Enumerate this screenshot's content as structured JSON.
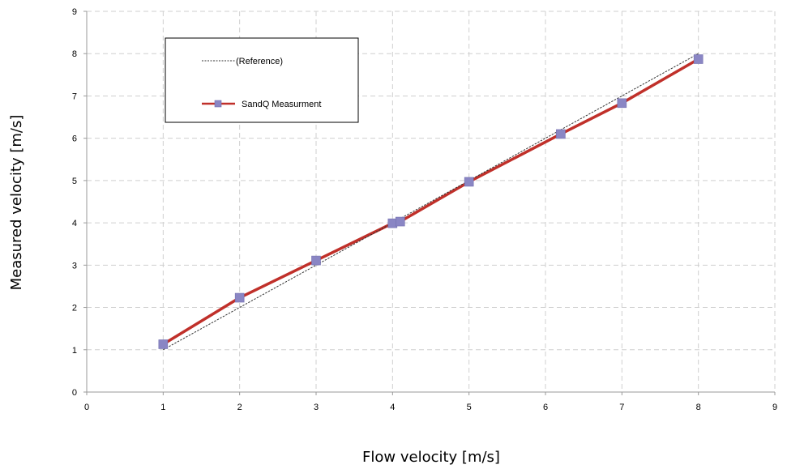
{
  "chart_data": {
    "type": "line",
    "title": "",
    "xlabel": "Flow velocity [m/s]",
    "ylabel": "Measured velocity [m/s]",
    "xlim": [
      0,
      9
    ],
    "ylim": [
      0,
      9
    ],
    "xticks": [
      "0",
      "1",
      "2",
      "3",
      "4",
      "5",
      "6",
      "7",
      "8",
      "9"
    ],
    "yticks": [
      "0",
      "1",
      "2",
      "3",
      "4",
      "5",
      "6",
      "7",
      "8",
      "9"
    ],
    "grid": true,
    "grid_style": "dashed",
    "legend_position": "top-left",
    "series": [
      {
        "name": "(Reference)",
        "style": "dashed",
        "color": "#333333",
        "marker": "none",
        "points": [
          [
            1,
            1
          ],
          [
            8,
            8
          ]
        ]
      },
      {
        "name": "SandQ Measurment",
        "style": "solid",
        "color": "#c0302a",
        "marker": "square",
        "marker_color": "#8a86c4",
        "points": [
          [
            1,
            1.13
          ],
          [
            2,
            2.23
          ],
          [
            3,
            3.11
          ],
          [
            4,
            3.99
          ],
          [
            4.1,
            4.03
          ],
          [
            5,
            4.97
          ],
          [
            6.2,
            6.1
          ],
          [
            7,
            6.83
          ],
          [
            8,
            7.87
          ]
        ]
      }
    ]
  }
}
